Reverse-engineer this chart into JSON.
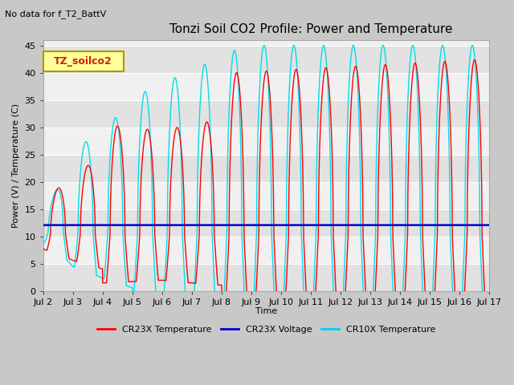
{
  "title": "Tonzi Soil CO2 Profile: Power and Temperature",
  "subtitle": "No data for f_T2_BattV",
  "ylabel": "Power (V) / Temperature (C)",
  "xlabel": "Time",
  "ylim": [
    0,
    46
  ],
  "yticks": [
    0,
    5,
    10,
    15,
    20,
    25,
    30,
    35,
    40,
    45
  ],
  "x_tick_labels": [
    "Jul 2",
    "Jul 3",
    "Jul 4",
    "Jul 5",
    "Jul 6",
    "Jul 7",
    "Jul 8",
    "Jul 9",
    "Jul 10",
    "Jul 11",
    "Jul 12",
    "Jul 13",
    "Jul 14",
    "Jul 15",
    "Jul 16",
    "Jul 17"
  ],
  "legend_labels": [
    "CR23X Temperature",
    "CR23X Voltage",
    "CR10X Temperature"
  ],
  "legend_colors": [
    "#ff0000",
    "#0000cc",
    "#00ccff"
  ],
  "cr23x_color": "#ff0000",
  "cr10x_color": "#00ddee",
  "voltage_color": "#0000cc",
  "voltage_value": 12.1,
  "plot_bg_color": "#f0f0f0",
  "band_color": "#e2e2e2",
  "legend_box_color": "#ffff99",
  "legend_box_border": "#aa9900",
  "legend_box_text": "TZ_soilco2",
  "legend_box_text_color": "#cc2200",
  "title_fontsize": 11,
  "axis_fontsize": 8,
  "subtitle_fontsize": 8
}
